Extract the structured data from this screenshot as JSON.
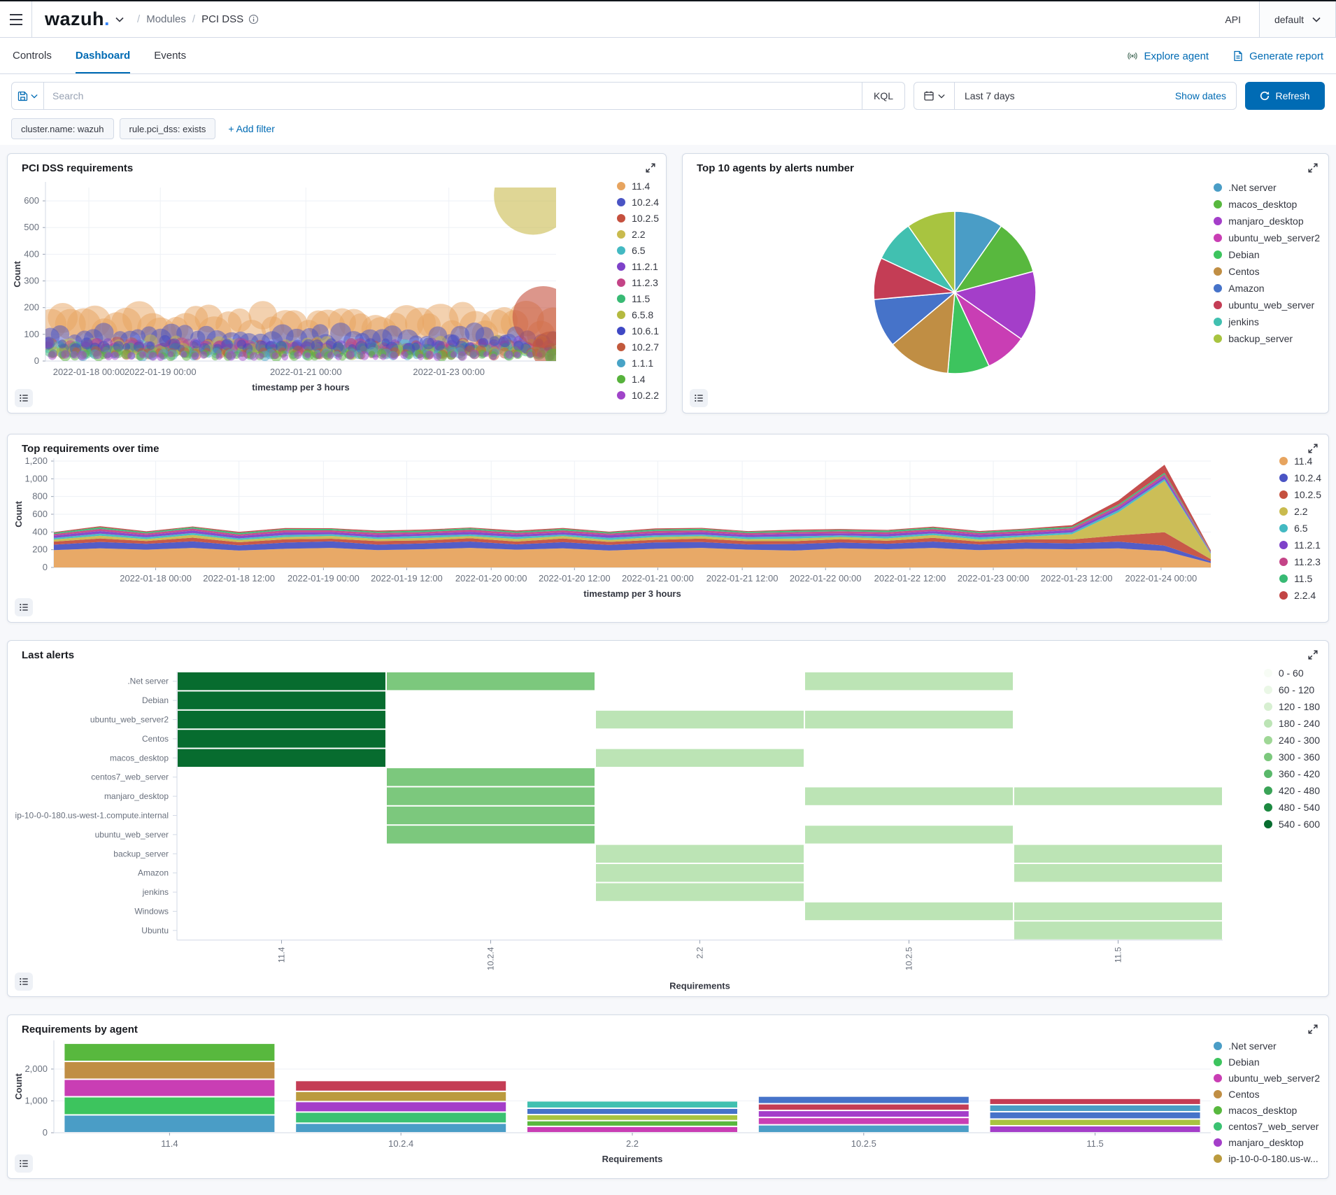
{
  "topbar": {
    "logo_name": "wazuh",
    "logo_dot": ".",
    "breadcrumb": {
      "section": "Modules",
      "page": "PCI DSS"
    },
    "api_label": "API",
    "api_value": "default"
  },
  "tabs": {
    "items": [
      "Controls",
      "Dashboard",
      "Events"
    ],
    "active": "Dashboard"
  },
  "actions": {
    "explore_agent": "Explore agent",
    "generate_report": "Generate report"
  },
  "search": {
    "placeholder": "Search",
    "kql_label": "KQL",
    "time_range": "Last 7 days",
    "show_dates": "Show dates",
    "refresh_label": "Refresh"
  },
  "filters": {
    "pills": [
      "cluster.name: wazuh",
      "rule.pci_dss: exists"
    ],
    "add_label": "+ Add filter"
  },
  "colors": {
    "accent": "#006BB4",
    "logo_dot": "#3585f9",
    "border": "#d3dae6"
  },
  "chart_data": [
    {
      "type": "scatter",
      "title": "PCI DSS requirements",
      "xlabel": "timestamp per 3 hours",
      "ylabel": "Count",
      "ylim": [
        0,
        650
      ],
      "yticks": [
        0,
        100,
        200,
        300,
        400,
        500,
        600
      ],
      "xticks": [
        {
          "label": "2022-01-18 00:00",
          "f": 0.085
        },
        {
          "label": "2022-01-19 00:00",
          "f": 0.225
        },
        {
          "label": "2022-01-21 00:00",
          "f": 0.51
        },
        {
          "label": "2022-01-23 00:00",
          "f": 0.79
        }
      ],
      "n_bubbles": 46,
      "opacity": 0.5,
      "series": [
        {
          "name": "11.4",
          "color": "#e7a45f",
          "level": 135,
          "r": [
            16,
            26
          ]
        },
        {
          "name": "10.2.4",
          "color": "#4a54c4",
          "level": 85,
          "r": [
            10,
            16
          ]
        },
        {
          "name": "10.2.5",
          "color": "#c5503e",
          "level": 52,
          "r": [
            6,
            11
          ]
        },
        {
          "name": "2.2",
          "color": "#c9bb4e",
          "level": 58,
          "r": [
            6,
            11
          ]
        },
        {
          "name": "6.5",
          "color": "#43b9c2",
          "level": 45,
          "r": [
            6,
            10
          ]
        },
        {
          "name": "11.2.1",
          "color": "#7e42c9",
          "level": 55,
          "r": [
            6,
            10
          ]
        },
        {
          "name": "11.2.3",
          "color": "#c44487",
          "level": 48,
          "r": [
            6,
            11
          ]
        },
        {
          "name": "11.5",
          "color": "#38ba74",
          "level": 40,
          "r": [
            6,
            10
          ]
        },
        {
          "name": "6.5.8",
          "color": "#b4ba40",
          "level": 36,
          "r": [
            5,
            9
          ]
        },
        {
          "name": "10.6.1",
          "color": "#3f48c4",
          "level": 60,
          "r": [
            5,
            9
          ]
        },
        {
          "name": "10.2.7",
          "color": "#c2593c",
          "level": 30,
          "r": [
            5,
            8
          ]
        },
        {
          "name": "1.1.1",
          "color": "#48a3c6",
          "level": 26,
          "r": [
            4,
            8
          ]
        },
        {
          "name": "1.4",
          "color": "#57b23c",
          "level": 22,
          "r": [
            4,
            8
          ]
        },
        {
          "name": "10.2.2",
          "color": "#a044c9",
          "level": 20,
          "r": [
            4,
            7
          ]
        }
      ],
      "outliers": [
        {
          "name": "2.2",
          "color": "#c9bb4e",
          "f": 0.955,
          "count": 620,
          "r": 56
        },
        {
          "name": "10.2.5",
          "color": "#c5503e",
          "f": 0.975,
          "count": 165,
          "r": 44
        },
        {
          "name": "10.2.7",
          "color": "#c2593c",
          "f": 0.99,
          "count": 40,
          "r": 27
        },
        {
          "name": "1.4",
          "color": "#57b23c",
          "f": 0.995,
          "count": 15,
          "r": 12
        }
      ]
    },
    {
      "type": "pie",
      "title": "Top 10 agents by alerts number",
      "legend_position": "right",
      "slices": [
        {
          "name": ".Net server",
          "color": "#4a9dc6",
          "value": 35
        },
        {
          "name": "macos_desktop",
          "color": "#58b83e",
          "value": 40
        },
        {
          "name": "manjaro_desktop",
          "color": "#a43ec9",
          "value": 50
        },
        {
          "name": "ubuntu_web_server2",
          "color": "#c93eb4",
          "value": 30
        },
        {
          "name": "Debian",
          "color": "#3dc45e",
          "value": 30
        },
        {
          "name": "Centos",
          "color": "#c08e44",
          "value": 45
        },
        {
          "name": "Amazon",
          "color": "#4673c9",
          "value": 35
        },
        {
          "name": "ubuntu_web_server",
          "color": "#c43d55",
          "value": 30
        },
        {
          "name": "jenkins",
          "color": "#41c0b0",
          "value": 30
        },
        {
          "name": "backup_server",
          "color": "#a8c440",
          "value": 35
        }
      ]
    },
    {
      "type": "area",
      "title": "Top requirements over time",
      "xlabel": "timestamp per 3 hours",
      "ylabel": "Count",
      "ylim": [
        0,
        1200
      ],
      "yticks": [
        0,
        200,
        400,
        600,
        800,
        1000,
        1200
      ],
      "xticks": [
        {
          "label": "2022-01-18 00:00",
          "f": 0.088
        },
        {
          "label": "2022-01-18 12:00",
          "f": 0.16
        },
        {
          "label": "2022-01-19 00:00",
          "f": 0.233
        },
        {
          "label": "2022-01-19 12:00",
          "f": 0.305
        },
        {
          "label": "2022-01-20 00:00",
          "f": 0.378
        },
        {
          "label": "2022-01-20 12:00",
          "f": 0.45
        },
        {
          "label": "2022-01-21 00:00",
          "f": 0.522
        },
        {
          "label": "2022-01-21 12:00",
          "f": 0.595
        },
        {
          "label": "2022-01-22 00:00",
          "f": 0.667
        },
        {
          "label": "2022-01-22 12:00",
          "f": 0.74
        },
        {
          "label": "2022-01-23 00:00",
          "f": 0.812
        },
        {
          "label": "2022-01-23 12:00",
          "f": 0.884
        },
        {
          "label": "2022-01-24 00:00",
          "f": 0.957
        }
      ],
      "series": [
        {
          "name": "11.4",
          "color": "#e7a45f",
          "values": [
            195,
            215,
            200,
            220,
            190,
            210,
            220,
            195,
            205,
            220,
            200,
            215,
            190,
            210,
            220,
            200,
            190,
            215,
            205,
            220,
            195,
            210,
            205,
            215,
            185,
            50
          ]
        },
        {
          "name": "10.2.4",
          "color": "#4a54c4",
          "values": [
            62,
            72,
            66,
            74,
            60,
            70,
            74,
            62,
            66,
            72,
            60,
            70,
            64,
            72,
            66,
            60,
            74,
            66,
            62,
            72,
            64,
            70,
            66,
            76,
            62,
            18
          ]
        },
        {
          "name": "10.2.5",
          "color": "#c5503e",
          "values": [
            34,
            40,
            32,
            42,
            34,
            38,
            30,
            40,
            34,
            38,
            32,
            42,
            34,
            30,
            40,
            36,
            32,
            38,
            34,
            42,
            32,
            38,
            44,
            70,
            150,
            25
          ]
        },
        {
          "name": "2.2",
          "color": "#c9bb4e",
          "values": [
            24,
            30,
            22,
            30,
            26,
            24,
            30,
            24,
            28,
            22,
            30,
            26,
            22,
            30,
            26,
            24,
            30,
            24,
            26,
            30,
            24,
            28,
            60,
            260,
            580,
            60
          ]
        },
        {
          "name": "6.5",
          "color": "#43b9c2",
          "values": [
            18,
            24,
            20,
            22,
            18,
            24,
            20,
            18,
            24,
            20,
            22,
            18,
            24,
            20,
            18,
            22,
            24,
            18,
            22,
            20,
            24,
            18,
            20,
            24,
            20,
            8
          ]
        },
        {
          "name": "11.2.1",
          "color": "#7e42c9",
          "values": [
            26,
            30,
            24,
            28,
            26,
            30,
            24,
            28,
            24,
            30,
            26,
            24,
            30,
            26,
            28,
            24,
            30,
            24,
            28,
            26,
            30,
            24,
            28,
            26,
            30,
            8
          ]
        },
        {
          "name": "11.2.3",
          "color": "#c44487",
          "values": [
            18,
            24,
            20,
            22,
            18,
            24,
            20,
            22,
            18,
            24,
            20,
            22,
            18,
            24,
            20,
            22,
            18,
            24,
            20,
            22,
            18,
            24,
            20,
            22,
            24,
            6
          ]
        },
        {
          "name": "11.5",
          "color": "#38ba74",
          "values": [
            14,
            18,
            14,
            16,
            18,
            14,
            16,
            14,
            18,
            16,
            14,
            18,
            14,
            16,
            18,
            14,
            16,
            14,
            18,
            16,
            14,
            18,
            14,
            16,
            18,
            5
          ]
        },
        {
          "name": "2.2.4",
          "color": "#c24444",
          "values": [
            8,
            12,
            10,
            8,
            12,
            10,
            8,
            12,
            10,
            8,
            12,
            10,
            8,
            12,
            10,
            8,
            12,
            10,
            8,
            12,
            10,
            8,
            20,
            45,
            90,
            12
          ]
        }
      ]
    },
    {
      "type": "heatmap",
      "title": "Last alerts",
      "xlabel": "Requirements",
      "columns": [
        "11.4",
        "10.2.4",
        "2.2",
        "10.2.5",
        "11.5"
      ],
      "palette": [
        "#f7fcf5",
        "#eaf7e6",
        "#d7efd1",
        "#bce4b5",
        "#9fd796",
        "#7cc87d",
        "#59b86a",
        "#3aa357",
        "#1d8941",
        "#076c2f"
      ],
      "legend_labels": [
        "0 - 60",
        "60 - 120",
        "120 - 180",
        "180 - 240",
        "240 - 300",
        "300 - 360",
        "360 - 420",
        "420 - 480",
        "480 - 540",
        "540 - 600"
      ],
      "rows": [
        {
          "agent": ".Net server",
          "values": [
            570,
            330,
            null,
            200,
            null
          ]
        },
        {
          "agent": "Debian",
          "values": [
            580,
            null,
            null,
            null,
            null
          ]
        },
        {
          "agent": "ubuntu_web_server2",
          "values": [
            560,
            null,
            200,
            210,
            null
          ]
        },
        {
          "agent": "Centos",
          "values": [
            575,
            null,
            null,
            null,
            null
          ]
        },
        {
          "agent": "macos_desktop",
          "values": [
            565,
            null,
            190,
            null,
            null
          ]
        },
        {
          "agent": "centos7_web_server",
          "values": [
            null,
            340,
            null,
            null,
            null
          ]
        },
        {
          "agent": "manjaro_desktop",
          "values": [
            null,
            335,
            null,
            200,
            195
          ]
        },
        {
          "agent": "ip-10-0-0-180.us-west-1.compute.internal",
          "values": [
            null,
            330,
            null,
            null,
            null
          ]
        },
        {
          "agent": "ubuntu_web_server",
          "values": [
            null,
            345,
            null,
            205,
            null
          ]
        },
        {
          "agent": "backup_server",
          "values": [
            null,
            null,
            195,
            null,
            200
          ]
        },
        {
          "agent": "Amazon",
          "values": [
            null,
            null,
            200,
            null,
            210
          ]
        },
        {
          "agent": "jenkins",
          "values": [
            null,
            null,
            205,
            null,
            null
          ]
        },
        {
          "agent": "Windows",
          "values": [
            null,
            null,
            null,
            190,
            195
          ]
        },
        {
          "agent": "Ubuntu",
          "values": [
            null,
            null,
            null,
            null,
            185
          ]
        }
      ]
    },
    {
      "type": "bar",
      "title": "Requirements by agent",
      "xlabel": "Requirements",
      "ylabel": "Count",
      "ylim": [
        0,
        2900
      ],
      "yticks": [
        0,
        1000,
        2000
      ],
      "legend": [
        {
          "label": ".Net server",
          "color": "#4a9dc6"
        },
        {
          "label": "Debian",
          "color": "#3dc45e"
        },
        {
          "label": "ubuntu_web_server2",
          "color": "#c93eb4"
        },
        {
          "label": "Centos",
          "color": "#c08e44"
        },
        {
          "label": "macos_desktop",
          "color": "#58b83e"
        },
        {
          "label": "centos7_web_server",
          "color": "#3bc272"
        },
        {
          "label": "manjaro_desktop",
          "color": "#a43ec9"
        },
        {
          "label": "ip-10-0-0-180.us-w...",
          "color": "#bb9b3e"
        }
      ],
      "bars": [
        {
          "category": "11.4",
          "segments": [
            {
              "agent": ".Net server",
              "color": "#4a9dc6",
              "value": 560
            },
            {
              "agent": "Debian",
              "color": "#3dc45e",
              "value": 570
            },
            {
              "agent": "ubuntu_web_server2",
              "color": "#c93eb4",
              "value": 550
            },
            {
              "agent": "Centos",
              "color": "#c08e44",
              "value": 560
            },
            {
              "agent": "macos_desktop",
              "color": "#58b83e",
              "value": 570
            }
          ]
        },
        {
          "category": "10.2.4",
          "segments": [
            {
              "agent": ".Net server",
              "color": "#4a9dc6",
              "value": 300
            },
            {
              "agent": "centos7_web_server",
              "color": "#3bc272",
              "value": 350
            },
            {
              "agent": "manjaro_desktop",
              "color": "#a43ec9",
              "value": 330
            },
            {
              "agent": "ip-10-0-0-180.us-west-1.compute.internal",
              "color": "#bb9b3e",
              "value": 320
            },
            {
              "agent": "ubuntu_web_server",
              "color": "#c43d55",
              "value": 340
            }
          ]
        },
        {
          "category": "2.2",
          "segments": [
            {
              "agent": "ubuntu_web_server2",
              "color": "#c93eb4",
              "value": 200
            },
            {
              "agent": "macos_desktop",
              "color": "#58b83e",
              "value": 180
            },
            {
              "agent": "backup_server",
              "color": "#a8c440",
              "value": 190
            },
            {
              "agent": "Amazon",
              "color": "#4673c9",
              "value": 200
            },
            {
              "agent": "jenkins",
              "color": "#41c0b0",
              "value": 230
            }
          ]
        },
        {
          "category": "10.2.5",
          "segments": [
            {
              "agent": ".Net server",
              "color": "#4a9dc6",
              "value": 250
            },
            {
              "agent": "ubuntu_web_server2",
              "color": "#c93eb4",
              "value": 230
            },
            {
              "agent": "manjaro_desktop",
              "color": "#a43ec9",
              "value": 220
            },
            {
              "agent": "ubuntu_web_server",
              "color": "#c43d55",
              "value": 210
            },
            {
              "agent": "Amazon",
              "color": "#4673c9",
              "value": 240
            }
          ]
        },
        {
          "category": "11.5",
          "segments": [
            {
              "agent": "manjaro_desktop",
              "color": "#a43ec9",
              "value": 220
            },
            {
              "agent": "backup_server",
              "color": "#a8c440",
              "value": 210
            },
            {
              "agent": "Amazon",
              "color": "#4673c9",
              "value": 230
            },
            {
              "agent": ".Net server",
              "color": "#4a9dc6",
              "value": 220
            },
            {
              "agent": "ubuntu_web_server",
              "color": "#c43d55",
              "value": 200
            }
          ]
        }
      ]
    }
  ]
}
